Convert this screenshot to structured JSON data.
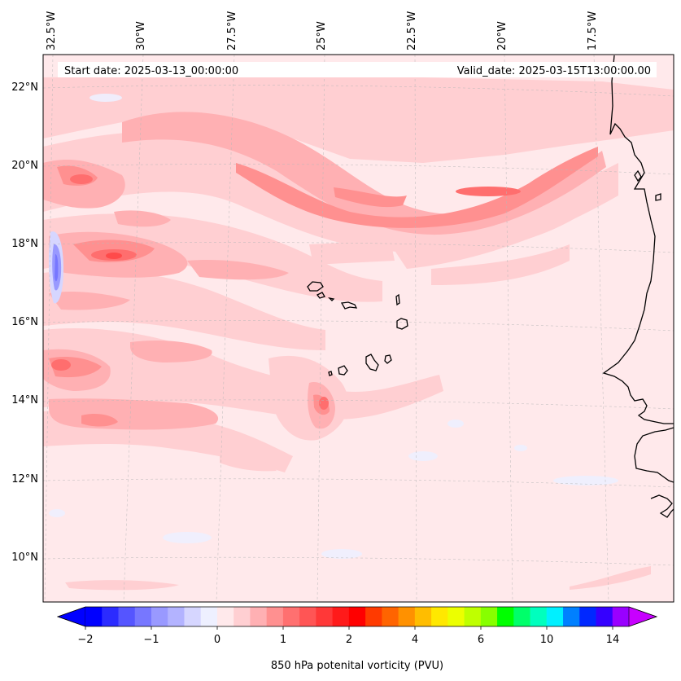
{
  "map": {
    "start_date": "Start date: 2025-03-13_00:00:00",
    "valid_date": "Valid_date: 2025-03-15T13:00:00.00",
    "lon_labels": [
      "32.5°W",
      "30°W",
      "27.5°W",
      "25°W",
      "22.5°W",
      "20°W",
      "17.5°W"
    ],
    "lat_labels": [
      "22°N",
      "20°N",
      "18°N",
      "16°N",
      "14°N",
      "12°N",
      "10°N"
    ],
    "background_color": "#ffe9eb",
    "coastline_color": "#000000"
  },
  "colorbar": {
    "label": "850 hPa potenital vorticity (PVU)",
    "ticks": [
      "−2",
      "−1",
      "0",
      "1",
      "2",
      "4",
      "6",
      "10",
      "14"
    ],
    "colors": [
      "#0000ff",
      "#2b2bff",
      "#5555ff",
      "#7777ff",
      "#9999ff",
      "#b3b3ff",
      "#d6d6ff",
      "#eef0ff",
      "#ffe9eb",
      "#ffcfd2",
      "#ffb0b3",
      "#ff9090",
      "#ff7070",
      "#ff5555",
      "#ff3838",
      "#ff1a1a",
      "#ff0000",
      "#ff3a00",
      "#ff6400",
      "#ff9100",
      "#ffbd00",
      "#ffe800",
      "#ecff00",
      "#bfff00",
      "#87ff00",
      "#00ff00",
      "#00ff6a",
      "#00ffbe",
      "#00f0ff",
      "#0080ff",
      "#0028ff",
      "#3500ff",
      "#9900ff"
    ],
    "under_color": "#0000ff",
    "over_color": "#c800ff"
  }
}
